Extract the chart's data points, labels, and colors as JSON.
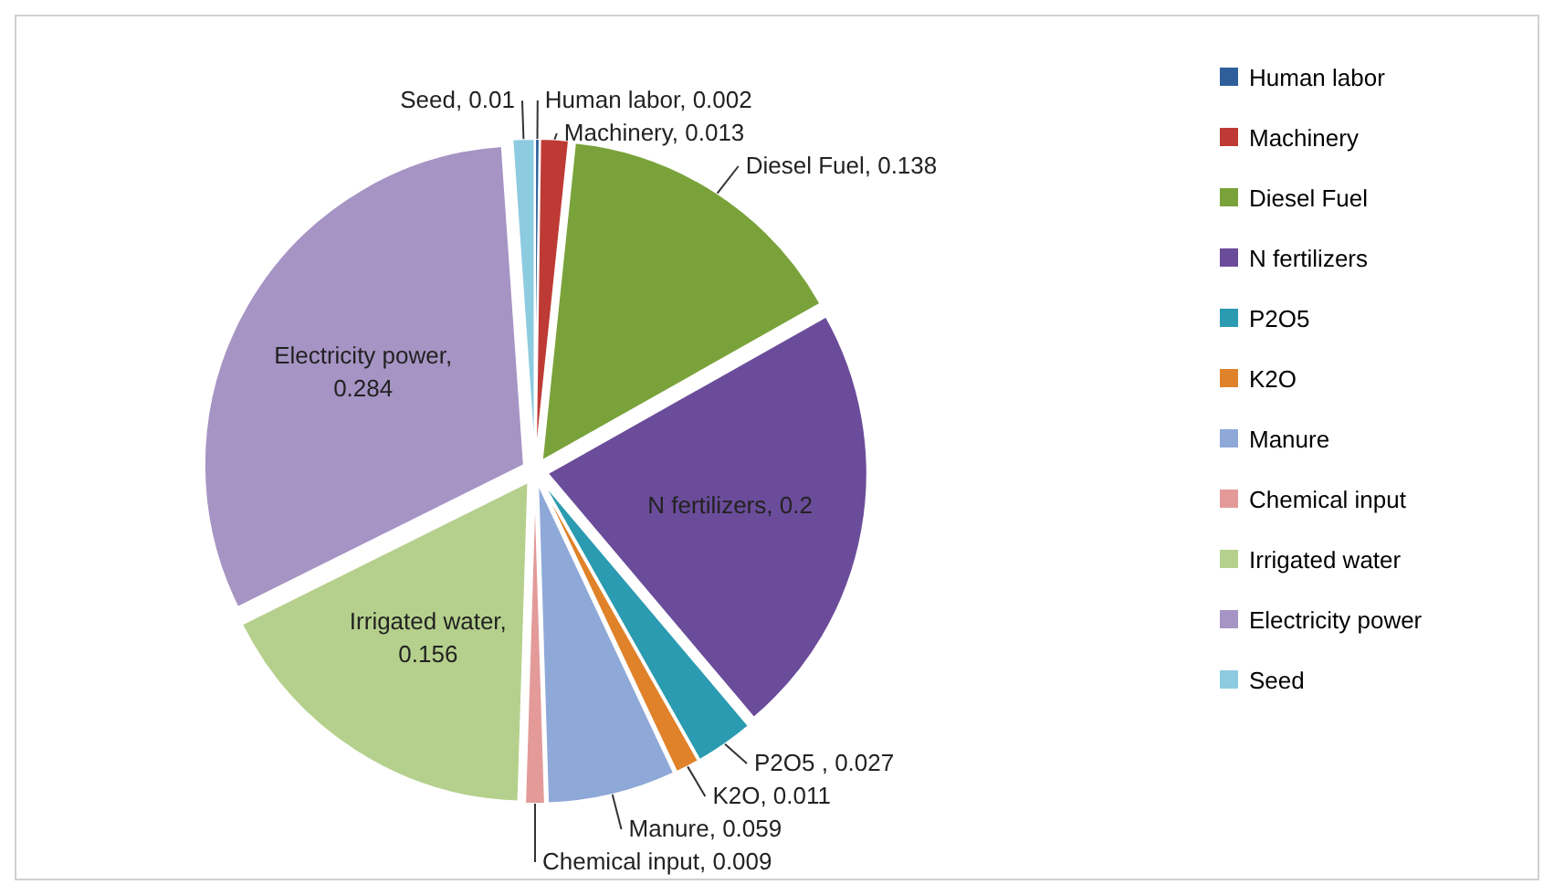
{
  "chart_data": {
    "type": "pie",
    "categories": [
      "Human labor",
      "Machinery",
      "Diesel Fuel",
      "N fertilizers",
      "P2O5",
      "K2O",
      "Manure",
      "Chemical input",
      "Irrigated water",
      "Electricity power",
      "Seed"
    ],
    "values": [
      0.002,
      0.013,
      0.138,
      0.2,
      0.027,
      0.011,
      0.059,
      0.009,
      0.156,
      0.284,
      0.01
    ],
    "colors": [
      "#2e5f9a",
      "#be3a34",
      "#7aa23a",
      "#6b4c9a",
      "#2a9bb0",
      "#e0822a",
      "#8ea8d8",
      "#e39a98",
      "#b5d08c",
      "#a694c4",
      "#8ccbe0"
    ],
    "value_labels": [
      "Human labor, 0.002",
      "Machinery, 0.013",
      "Diesel Fuel, 0.138",
      "N fertilizers, 0.2",
      "P2O5 , 0.027",
      "K2O, 0.011",
      "Manure, 0.059",
      "Chemical input, 0.009",
      "Irrigated water, 0.156",
      "Electricity power, 0.284",
      "Seed, 0.01"
    ],
    "legend": "right"
  }
}
